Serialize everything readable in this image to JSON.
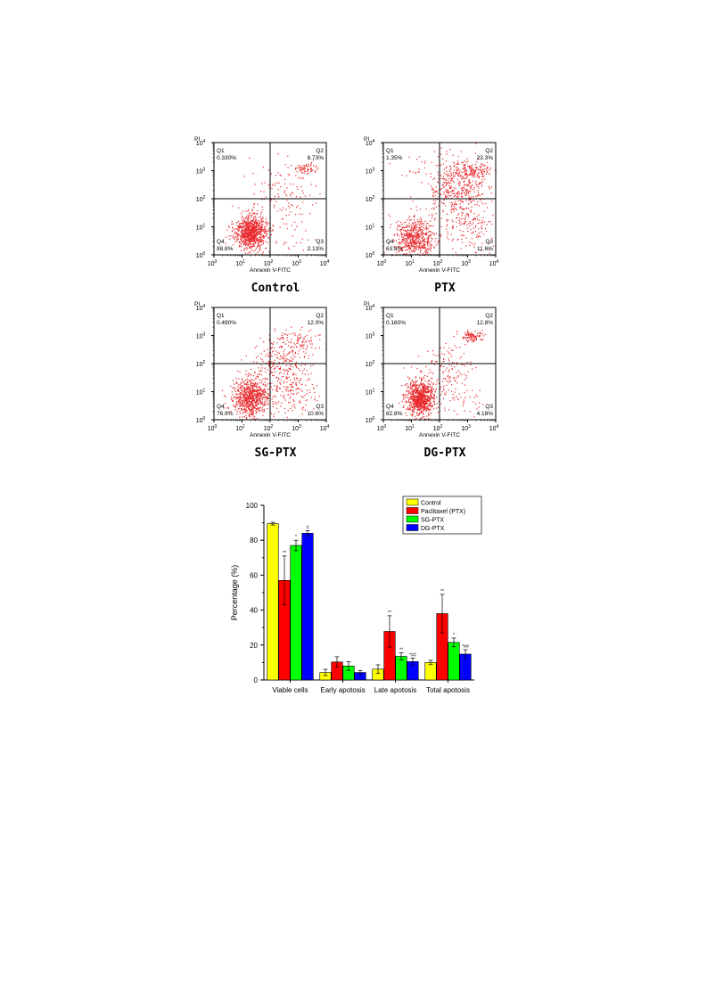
{
  "chart_data": [
    {
      "type": "scatter",
      "panel": "Control",
      "title": "Control",
      "xlabel": "Annexin V-FITC",
      "ylabel": "PI",
      "xscale": "log",
      "yscale": "log",
      "xlim": [
        1,
        10000
      ],
      "ylim": [
        1,
        10000
      ],
      "x_tick_labels": [
        "10^0",
        "10^1",
        "10^2",
        "10^3",
        "10^4"
      ],
      "y_tick_labels": [
        "10^0",
        "10^1",
        "10^2",
        "10^3",
        "10^4"
      ],
      "quadrants": [
        {
          "name": "Q1",
          "value": "0.330%"
        },
        {
          "name": "Q2",
          "value": "8.73%"
        },
        {
          "name": "Q3",
          "value": "2.13%"
        },
        {
          "name": "Q4",
          "value": "88.8%"
        }
      ]
    },
    {
      "type": "scatter",
      "panel": "PTX",
      "title": "PTX",
      "xlabel": "Annexin V-FITC",
      "ylabel": "PI",
      "xscale": "log",
      "yscale": "log",
      "xlim": [
        1,
        10000
      ],
      "ylim": [
        1,
        10000
      ],
      "x_tick_labels": [
        "10^0",
        "10^1",
        "10^2",
        "10^3",
        "10^4"
      ],
      "y_tick_labels": [
        "10^0",
        "10^1",
        "10^2",
        "10^3",
        "10^4"
      ],
      "quadrants": [
        {
          "name": "Q1",
          "value": "1.35%"
        },
        {
          "name": "Q2",
          "value": "23.3%"
        },
        {
          "name": "Q3",
          "value": "11.6%"
        },
        {
          "name": "Q4",
          "value": "63.8%"
        }
      ]
    },
    {
      "type": "scatter",
      "panel": "SG-PTX",
      "title": "SG-PTX",
      "xlabel": "Annexin V-FITC",
      "ylabel": "PI",
      "xscale": "log",
      "yscale": "log",
      "xlim": [
        1,
        10000
      ],
      "ylim": [
        1,
        10000
      ],
      "x_tick_labels": [
        "10^0",
        "10^1",
        "10^2",
        "10^3",
        "10^4"
      ],
      "y_tick_labels": [
        "10^0",
        "10^1",
        "10^2",
        "10^3",
        "10^4"
      ],
      "quadrants": [
        {
          "name": "Q1",
          "value": "0.490%"
        },
        {
          "name": "Q2",
          "value": "12.0%"
        },
        {
          "name": "Q3",
          "value": "10.6%"
        },
        {
          "name": "Q4",
          "value": "76.9%"
        }
      ]
    },
    {
      "type": "scatter",
      "panel": "DG-PTX",
      "title": "DG-PTX",
      "xlabel": "Annexin V-FITC",
      "ylabel": "PI",
      "xscale": "log",
      "yscale": "log",
      "xlim": [
        1,
        10000
      ],
      "ylim": [
        1,
        10000
      ],
      "x_tick_labels": [
        "10^0",
        "10^1",
        "10^2",
        "10^3",
        "10^4"
      ],
      "y_tick_labels": [
        "10^0",
        "10^1",
        "10^2",
        "10^3",
        "10^4"
      ],
      "quadrants": [
        {
          "name": "Q1",
          "value": "0.160%"
        },
        {
          "name": "Q2",
          "value": "12.8%"
        },
        {
          "name": "Q3",
          "value": "4.18%"
        },
        {
          "name": "Q4",
          "value": "82.8%"
        }
      ]
    },
    {
      "type": "bar",
      "ylabel": "Percentage (%)",
      "xlabel": "",
      "ylim": [
        0,
        100
      ],
      "yticks": [
        0,
        20,
        40,
        60,
        80,
        100
      ],
      "categories": [
        "Viable cells",
        "Early apotosis",
        "Late apotosis",
        "Total apotosis"
      ],
      "legend_position": "top-right",
      "series": [
        {
          "name": "Control",
          "color": "#ffff00",
          "values": [
            89.5,
            4.3,
            6.2,
            10.0
          ],
          "errors": [
            0.8,
            1.8,
            2.5,
            1.2
          ],
          "annotations": [
            "",
            "",
            "",
            ""
          ]
        },
        {
          "name": "Paclitaxel (PTX)",
          "color": "#ff0000",
          "values": [
            57.0,
            10.3,
            27.8,
            38.0
          ],
          "errors": [
            14.0,
            3.0,
            9.0,
            11.0
          ],
          "annotations": [
            "**",
            "",
            "**",
            "**"
          ]
        },
        {
          "name": "SG-PTX",
          "color": "#00ff00",
          "values": [
            77.0,
            8.0,
            13.5,
            21.5
          ],
          "errors": [
            3.0,
            2.5,
            2.0,
            2.5
          ],
          "annotations": [
            "*",
            "",
            "**",
            "*"
          ]
        },
        {
          "name": "DG-PTX",
          "color": "#0000ff",
          "values": [
            84.0,
            4.3,
            10.5,
            14.8
          ],
          "errors": [
            1.5,
            1.0,
            2.0,
            2.5
          ],
          "annotations": [
            "#",
            "",
            "*##",
            "*##"
          ]
        }
      ]
    }
  ]
}
